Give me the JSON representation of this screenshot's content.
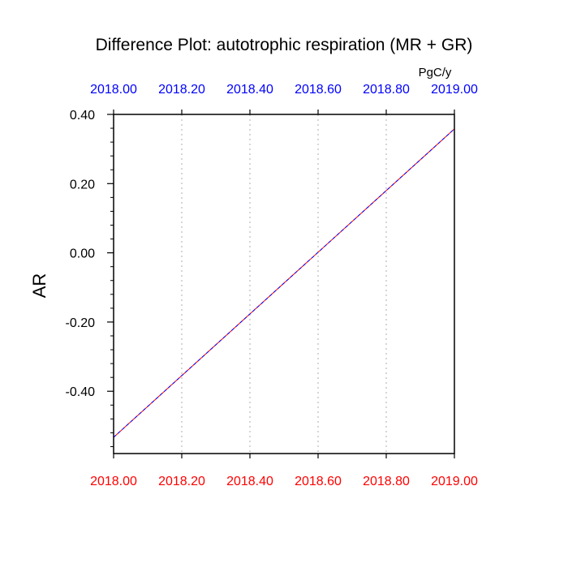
{
  "chart_data": {
    "type": "line",
    "title": "Difference Plot: autotrophic respiration (MR + GR)",
    "units": "PgC/y",
    "ylabel": "AR",
    "xlim": [
      2018.0,
      2019.0
    ],
    "ylim": [
      -0.58,
      0.4
    ],
    "x_ticks": [
      2018.0,
      2018.2,
      2018.4,
      2018.6,
      2018.8,
      2019.0
    ],
    "x_tick_labels_bottom": [
      "2018.00",
      "2018.20",
      "2018.40",
      "2018.60",
      "2018.80",
      "2019.00"
    ],
    "x_tick_labels_top": [
      "2018.00",
      "2018.20",
      "2018.40",
      "2018.60",
      "2018.80",
      "2019.00"
    ],
    "y_ticks": [
      -0.4,
      -0.2,
      0.0,
      0.2,
      0.4
    ],
    "y_tick_labels": [
      "-0.40",
      "-0.20",
      "0.00",
      "0.20",
      "0.40"
    ],
    "y_minor_step": 0.04,
    "x_gridlines": [
      2018.2,
      2018.4,
      2018.6,
      2018.8
    ],
    "grid": "dotted vertical at x tick positions",
    "series": [
      {
        "color": "#ff0000",
        "dash": "solid",
        "x": [
          2018.0,
          2019.0
        ],
        "y": [
          -0.533,
          0.358
        ]
      },
      {
        "color": "#0000ff",
        "dash": "dashed",
        "x": [
          2018.0,
          2019.0
        ],
        "y": [
          -0.533,
          0.358
        ]
      }
    ],
    "colors": {
      "top_axis_labels": "#0000ff",
      "bottom_axis_labels": "#ff0000",
      "gridline": "#bbbbbb",
      "axis": "#000000"
    }
  }
}
